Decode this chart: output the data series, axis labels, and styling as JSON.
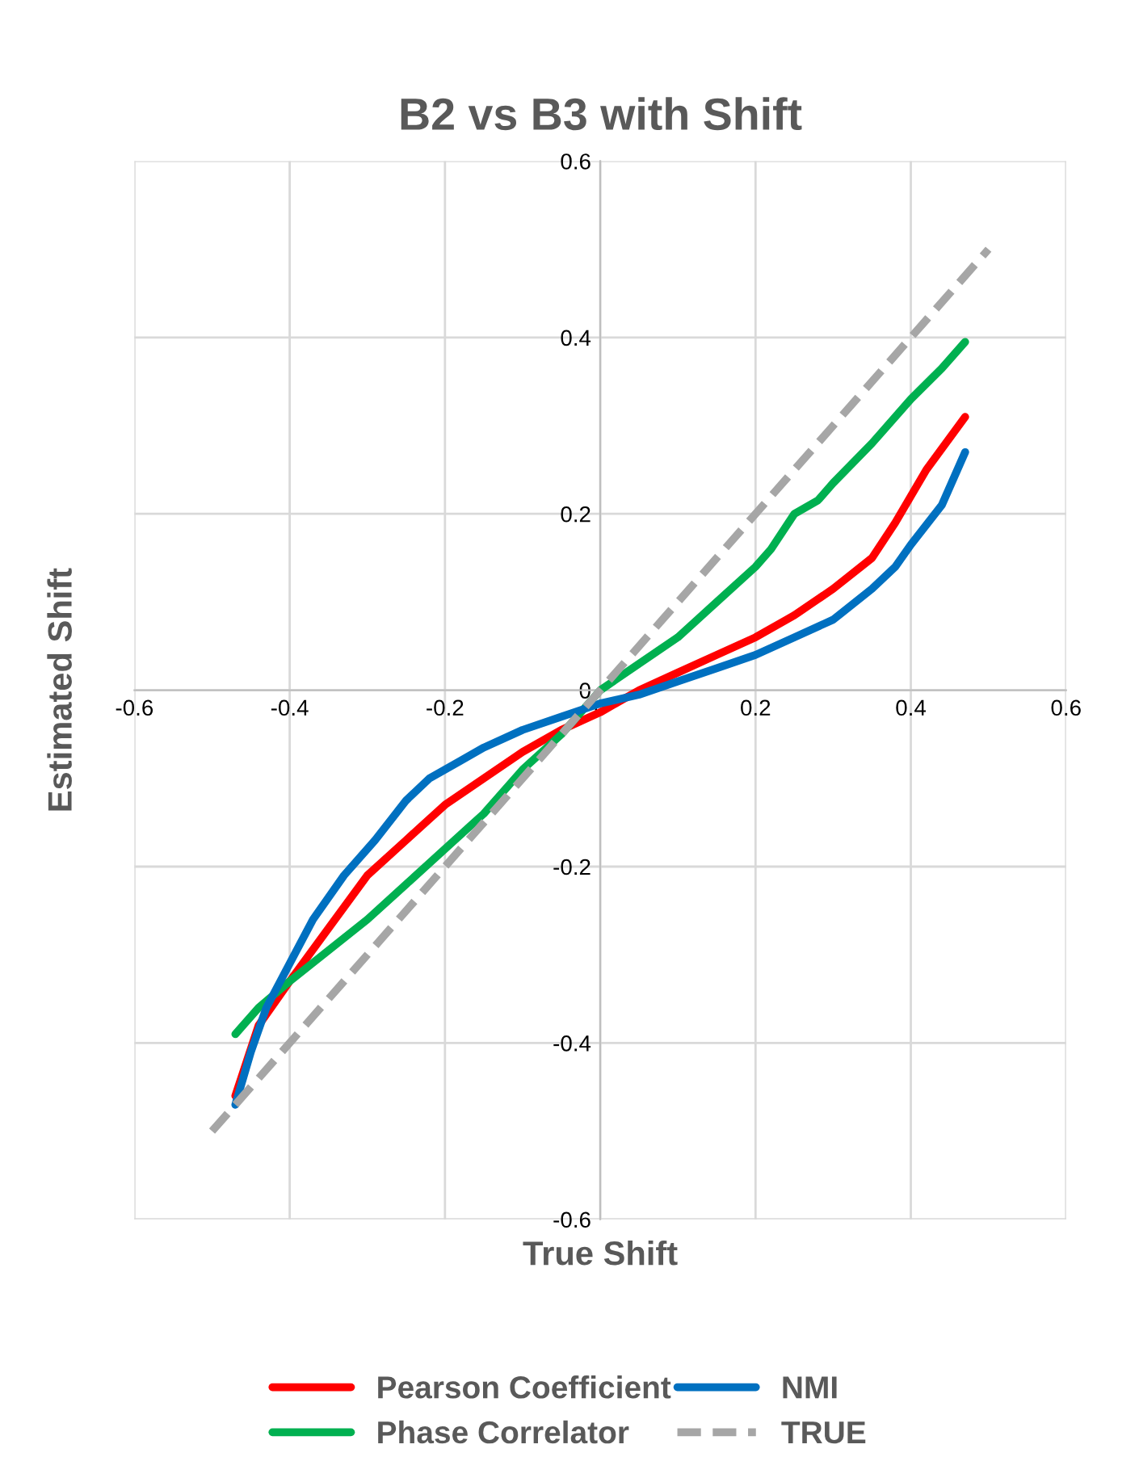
{
  "chart_data": {
    "type": "line",
    "title": "B2 vs B3 with Shift",
    "xlabel": "True Shift",
    "ylabel": "Estimated Shift",
    "xlim": [
      -0.6,
      0.6
    ],
    "ylim": [
      -0.6,
      0.6
    ],
    "xticks": [
      -0.6,
      -0.4,
      -0.2,
      0,
      0.2,
      0.4,
      0.6
    ],
    "yticks": [
      -0.6,
      -0.4,
      -0.2,
      0,
      0.2,
      0.4,
      0.6
    ],
    "grid": true,
    "legend": "bottom",
    "line_style": "solid",
    "marker": "none",
    "series": [
      {
        "name": "Pearson Coefficient",
        "color": "#ff0000",
        "x": [
          -0.47,
          -0.44,
          -0.4,
          -0.35,
          -0.3,
          -0.25,
          -0.2,
          -0.15,
          -0.1,
          -0.05,
          0,
          0.05,
          0.1,
          0.15,
          0.2,
          0.25,
          0.3,
          0.35,
          0.38,
          0.4,
          0.42,
          0.47
        ],
        "values": [
          -0.46,
          -0.38,
          -0.33,
          -0.27,
          -0.21,
          -0.17,
          -0.13,
          -0.1,
          -0.07,
          -0.045,
          -0.025,
          0,
          0.02,
          0.04,
          0.06,
          0.085,
          0.115,
          0.15,
          0.19,
          0.22,
          0.25,
          0.31
        ]
      },
      {
        "name": "Phase Correlator",
        "color": "#00b050",
        "x": [
          -0.47,
          -0.44,
          -0.4,
          -0.3,
          -0.25,
          -0.2,
          -0.15,
          -0.1,
          -0.05,
          0,
          0.05,
          0.1,
          0.15,
          0.2,
          0.22,
          0.25,
          0.28,
          0.3,
          0.35,
          0.4,
          0.44,
          0.47
        ],
        "values": [
          -0.39,
          -0.36,
          -0.33,
          -0.26,
          -0.22,
          -0.18,
          -0.14,
          -0.09,
          -0.05,
          0,
          0.03,
          0.06,
          0.1,
          0.14,
          0.16,
          0.2,
          0.215,
          0.235,
          0.28,
          0.33,
          0.365,
          0.395
        ]
      },
      {
        "name": "NMI",
        "color": "#0070c0",
        "x": [
          -0.47,
          -0.45,
          -0.43,
          -0.4,
          -0.37,
          -0.33,
          -0.29,
          -0.25,
          -0.22,
          -0.18,
          -0.15,
          -0.1,
          -0.05,
          0,
          0.05,
          0.1,
          0.15,
          0.2,
          0.25,
          0.3,
          0.35,
          0.38,
          0.4,
          0.44,
          0.47
        ],
        "values": [
          -0.47,
          -0.41,
          -0.36,
          -0.31,
          -0.26,
          -0.21,
          -0.17,
          -0.125,
          -0.1,
          -0.08,
          -0.065,
          -0.045,
          -0.03,
          -0.015,
          -0.005,
          0.01,
          0.025,
          0.04,
          0.06,
          0.08,
          0.115,
          0.14,
          0.165,
          0.21,
          0.27
        ]
      },
      {
        "name": "TRUE",
        "color": "#a6a6a6",
        "line_style": "dashed",
        "x": [
          -0.5,
          0.5
        ],
        "values": [
          -0.5,
          0.5
        ]
      }
    ]
  }
}
